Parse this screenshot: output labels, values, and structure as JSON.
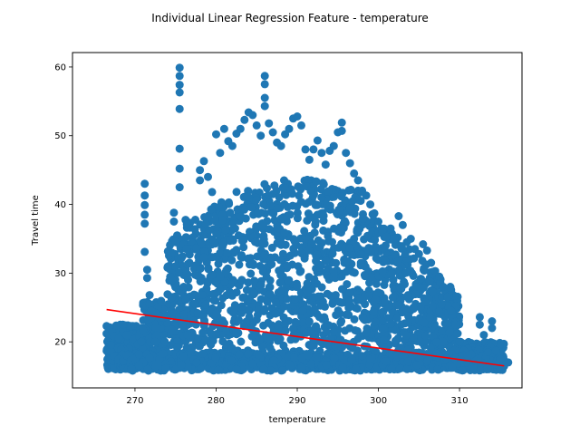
{
  "chart_data": {
    "type": "scatter",
    "title": "Individual Linear Regression Feature - temperature",
    "xlabel": "temperature",
    "ylabel": "Travel time",
    "xlim": [
      262.3,
      317.7
    ],
    "ylim": [
      13.3,
      62.1
    ],
    "xticks": [
      270,
      280,
      290,
      300,
      310
    ],
    "yticks": [
      20,
      30,
      40,
      50,
      60
    ],
    "xtick_labels": [
      "270",
      "280",
      "290",
      "300",
      "310"
    ],
    "ytick_labels": [
      "20",
      "30",
      "40",
      "50",
      "60"
    ],
    "grid": false,
    "colors": {
      "points": "#1f77b4",
      "regression": "#ff0000"
    },
    "regression_line": {
      "x": [
        266.5,
        315.5
      ],
      "y": [
        24.7,
        16.5
      ]
    },
    "series": [
      {
        "values_description_note": "",
        "points": [
          [
            266.5,
            22.3
          ],
          [
            266.5,
            21.2
          ],
          [
            266.8,
            22.0
          ],
          [
            267.2,
            21.4
          ],
          [
            267.5,
            20.8
          ],
          [
            268.0,
            20.5
          ],
          [
            268.5,
            21.8
          ],
          [
            268.5,
            22.5
          ],
          [
            268.0,
            17.5
          ],
          [
            268.5,
            17.2
          ],
          [
            269.0,
            18.0
          ],
          [
            269.5,
            17.3
          ],
          [
            270.0,
            17.6
          ],
          [
            270.5,
            18.2
          ],
          [
            269.0,
            21.0
          ],
          [
            269.5,
            22.3
          ],
          [
            270.8,
            20.0
          ],
          [
            271.0,
            17.0
          ],
          [
            270.5,
            16.5
          ],
          [
            271.2,
            43.0
          ],
          [
            271.2,
            41.3
          ],
          [
            271.2,
            39.9
          ],
          [
            271.2,
            38.5
          ],
          [
            271.2,
            37.2
          ],
          [
            271.2,
            33.1
          ],
          [
            271.5,
            30.5
          ],
          [
            271.5,
            29.3
          ],
          [
            271.8,
            26.8
          ],
          [
            271.8,
            25.5
          ],
          [
            272.0,
            24.5
          ],
          [
            272.0,
            23.5
          ],
          [
            272.5,
            20.0
          ],
          [
            273.0,
            17.5
          ],
          [
            273.5,
            18.3
          ],
          [
            274.0,
            30.8
          ],
          [
            274.5,
            33.0
          ],
          [
            274.8,
            38.8
          ],
          [
            274.8,
            37.5
          ],
          [
            275.2,
            35.5
          ],
          [
            275.0,
            34.5
          ],
          [
            275.5,
            59.9
          ],
          [
            275.5,
            58.7
          ],
          [
            275.5,
            57.4
          ],
          [
            275.5,
            56.3
          ],
          [
            275.5,
            53.9
          ],
          [
            275.5,
            48.1
          ],
          [
            275.5,
            45.2
          ],
          [
            275.5,
            42.5
          ],
          [
            276.0,
            28.0
          ],
          [
            276.0,
            24.0
          ],
          [
            276.5,
            21.0
          ],
          [
            277.0,
            19.0
          ],
          [
            278.0,
            45.0
          ],
          [
            278.0,
            43.5
          ],
          [
            278.5,
            46.3
          ],
          [
            279.0,
            44.0
          ],
          [
            279.5,
            41.8
          ],
          [
            280.0,
            50.2
          ],
          [
            280.5,
            47.5
          ],
          [
            281.0,
            51.0
          ],
          [
            281.5,
            49.2
          ],
          [
            282.0,
            48.5
          ],
          [
            282.5,
            50.3
          ],
          [
            283.0,
            51.0
          ],
          [
            283.5,
            52.3
          ],
          [
            284.0,
            53.4
          ],
          [
            284.5,
            53.0
          ],
          [
            285.0,
            51.5
          ],
          [
            285.5,
            50.0
          ],
          [
            286.0,
            58.7
          ],
          [
            286.0,
            57.5
          ],
          [
            286.0,
            55.5
          ],
          [
            286.0,
            54.3
          ],
          [
            286.5,
            51.8
          ],
          [
            287.0,
            50.5
          ],
          [
            287.5,
            49.0
          ],
          [
            288.0,
            48.5
          ],
          [
            288.5,
            50.2
          ],
          [
            289.0,
            51.0
          ],
          [
            289.5,
            52.5
          ],
          [
            290.0,
            52.8
          ],
          [
            290.5,
            51.5
          ],
          [
            291.0,
            48.0
          ],
          [
            291.5,
            46.5
          ],
          [
            292.0,
            48.0
          ],
          [
            292.5,
            49.3
          ],
          [
            293.0,
            47.5
          ],
          [
            293.5,
            45.8
          ],
          [
            294.0,
            47.8
          ],
          [
            294.5,
            48.5
          ],
          [
            295.0,
            50.5
          ],
          [
            295.5,
            51.9
          ],
          [
            295.5,
            50.7
          ],
          [
            296.0,
            47.5
          ],
          [
            296.5,
            46.0
          ],
          [
            297.0,
            44.5
          ],
          [
            297.5,
            43.5
          ],
          [
            298.0,
            42.0
          ],
          [
            298.5,
            41.3
          ],
          [
            299.0,
            40.0
          ],
          [
            299.5,
            38.7
          ],
          [
            300.0,
            37.5
          ],
          [
            300.5,
            36.0
          ],
          [
            301.0,
            35.3
          ],
          [
            301.5,
            36.5
          ],
          [
            302.0,
            35.0
          ],
          [
            302.5,
            38.3
          ],
          [
            303.0,
            37.0
          ],
          [
            303.5,
            34.5
          ],
          [
            304.0,
            35.0
          ],
          [
            304.5,
            33.5
          ],
          [
            305.0,
            32.8
          ],
          [
            305.5,
            34.2
          ],
          [
            306.0,
            33.3
          ],
          [
            306.5,
            31.5
          ],
          [
            307.0,
            30.3
          ],
          [
            307.5,
            29.5
          ],
          [
            308.0,
            28.0
          ],
          [
            308.5,
            26.5
          ],
          [
            309.0,
            24.5
          ],
          [
            309.5,
            22.5
          ],
          [
            310.0,
            20.0
          ],
          [
            311.0,
            18.0
          ],
          [
            312.0,
            17.2
          ],
          [
            312.5,
            23.6
          ],
          [
            312.5,
            22.5
          ],
          [
            313.0,
            21.0
          ],
          [
            313.5,
            18.5
          ],
          [
            314.0,
            23.0
          ],
          [
            314.0,
            22.0
          ],
          [
            314.5,
            18.7
          ],
          [
            315.0,
            17.8
          ],
          [
            315.5,
            17.3
          ],
          [
            315.5,
            16.8
          ],
          [
            316.0,
            17.0
          ],
          [
            315.0,
            17.5
          ]
        ]
      }
    ]
  }
}
